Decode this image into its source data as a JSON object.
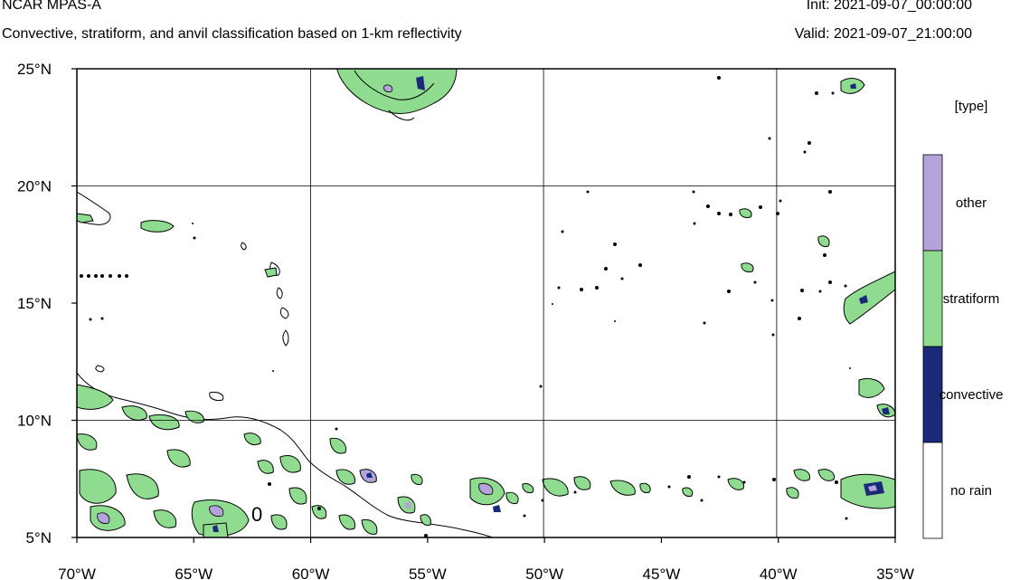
{
  "header": {
    "title": "NCAR MPAS-A",
    "subtitle": "Convective, stratiform, and anvil classification based on 1-km reflectivity",
    "init": "Init: 2021-09-07_00:00:00",
    "valid": "Valid: 2021-09-07_21:00:00"
  },
  "map": {
    "lon_range": [
      -70,
      -35
    ],
    "lat_range": [
      5,
      25
    ],
    "x_ticks": [
      {
        "value": -70,
        "label": "70°W"
      },
      {
        "value": -65,
        "label": "65°W"
      },
      {
        "value": -60,
        "label": "60°W"
      },
      {
        "value": -55,
        "label": "55°W"
      },
      {
        "value": -50,
        "label": "50°W"
      },
      {
        "value": -45,
        "label": "45°W"
      },
      {
        "value": -40,
        "label": "40°W"
      },
      {
        "value": -35,
        "label": "35°W"
      }
    ],
    "y_ticks": [
      {
        "value": 5,
        "label": "5°N"
      },
      {
        "value": 10,
        "label": "10°N"
      },
      {
        "value": 15,
        "label": "15°N"
      },
      {
        "value": 20,
        "label": "20°N"
      },
      {
        "value": 25,
        "label": "25°N"
      }
    ],
    "gridlines_lon": [
      -60,
      -50,
      -40
    ],
    "gridlines_lat": [
      10,
      20
    ],
    "contour_label": "0"
  },
  "colorbar": {
    "title": "[type]",
    "categories": [
      {
        "label": "other",
        "color": "#b3a3da"
      },
      {
        "label": "stratiform",
        "color": "#8fdc90"
      },
      {
        "label": "convective",
        "color": "#1a2a78"
      },
      {
        "label": "no rain",
        "color": "#ffffff"
      }
    ]
  },
  "colors": {
    "stratiform": "#8fdc90",
    "convective": "#1a2a78",
    "other": "#b3a3da",
    "contour": "#000000"
  }
}
